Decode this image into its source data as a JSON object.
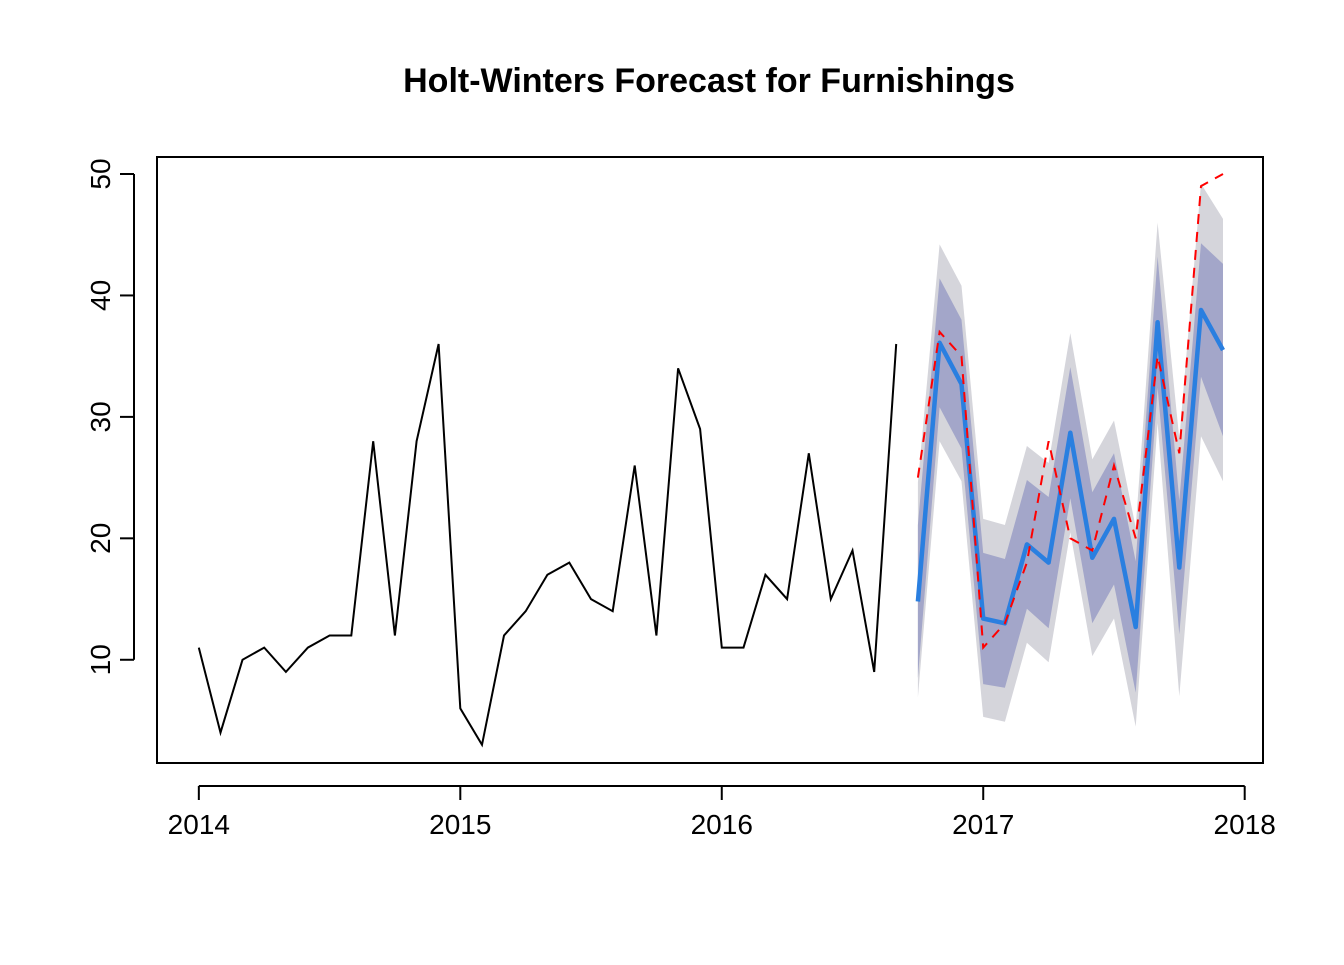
{
  "chart_data": {
    "type": "line",
    "title": "Holt-Winters Forecast for Furnishings",
    "xlabel": "",
    "ylabel": "",
    "xlim": [
      2013.84,
      2018.07
    ],
    "ylim": [
      1.5,
      51.4
    ],
    "x_ticks": [
      2014,
      2015,
      2016,
      2017,
      2018
    ],
    "x_tick_labels": [
      "2014",
      "2015",
      "2016",
      "2017",
      "2018"
    ],
    "y_ticks": [
      10,
      20,
      30,
      40,
      50
    ],
    "y_tick_labels": [
      "10",
      "20",
      "30",
      "40",
      "50"
    ],
    "grid": false,
    "legend": "none",
    "colors": {
      "observed": "#000000",
      "forecast": "#2a7fe0",
      "actual": "#ff0000",
      "band80": "#a3a6c9",
      "band95": "#d5d5db"
    },
    "series": [
      {
        "role": "observed",
        "x": [
          2014.0,
          2014.083,
          2014.167,
          2014.25,
          2014.333,
          2014.417,
          2014.5,
          2014.583,
          2014.667,
          2014.75,
          2014.833,
          2014.917,
          2015.0,
          2015.083,
          2015.167,
          2015.25,
          2015.333,
          2015.417,
          2015.5,
          2015.583,
          2015.667,
          2015.75,
          2015.833,
          2015.917,
          2016.0,
          2016.083,
          2016.167,
          2016.25,
          2016.333,
          2016.417,
          2016.5,
          2016.583,
          2016.667
        ],
        "y": [
          11,
          4,
          10,
          11,
          9,
          11,
          12,
          12,
          28,
          12,
          28,
          36,
          6,
          3,
          12,
          14,
          17,
          18,
          15,
          14,
          26,
          12,
          34,
          29,
          11,
          11,
          17,
          15,
          27,
          15,
          19,
          9,
          36
        ]
      },
      {
        "role": "forecast",
        "x": [
          2016.75,
          2016.833,
          2016.917,
          2017.0,
          2017.083,
          2017.167,
          2017.25,
          2017.333,
          2017.417,
          2017.5,
          2017.583,
          2017.667,
          2017.75,
          2017.833,
          2017.917
        ],
        "y": [
          14.8,
          36.1,
          32.7,
          13.4,
          13.0,
          19.5,
          18.0,
          28.7,
          18.4,
          21.6,
          12.7,
          37.8,
          17.6,
          38.8,
          35.5
        ],
        "lo80": [
          8.5,
          30.8,
          27.4,
          8.0,
          7.7,
          14.2,
          12.6,
          23.3,
          13.0,
          16.2,
          7.3,
          32.4,
          12.1,
          33.3,
          28.4
        ],
        "hi80": [
          21.1,
          41.4,
          38.0,
          18.8,
          18.3,
          24.8,
          23.4,
          34.1,
          23.8,
          27.0,
          18.1,
          43.2,
          23.1,
          44.3,
          42.6
        ],
        "lo95": [
          6.9,
          28.0,
          24.7,
          5.3,
          4.9,
          11.4,
          9.8,
          20.5,
          10.3,
          13.4,
          4.5,
          29.5,
          7.0,
          28.4,
          24.7
        ],
        "hi95": [
          24.6,
          44.2,
          40.8,
          21.6,
          21.1,
          27.6,
          26.2,
          36.9,
          26.5,
          29.7,
          20.9,
          46.0,
          28.2,
          49.2,
          46.3
        ]
      },
      {
        "role": "actual",
        "x": [
          2016.75,
          2016.833,
          2016.917,
          2017.0,
          2017.083,
          2017.167,
          2017.25,
          2017.333,
          2017.417,
          2017.5,
          2017.583,
          2017.667,
          2017.75,
          2017.833,
          2017.917
        ],
        "y": [
          25,
          37,
          35,
          11,
          13,
          18,
          28,
          20,
          19,
          26,
          20,
          35,
          27,
          49,
          50
        ]
      }
    ]
  }
}
